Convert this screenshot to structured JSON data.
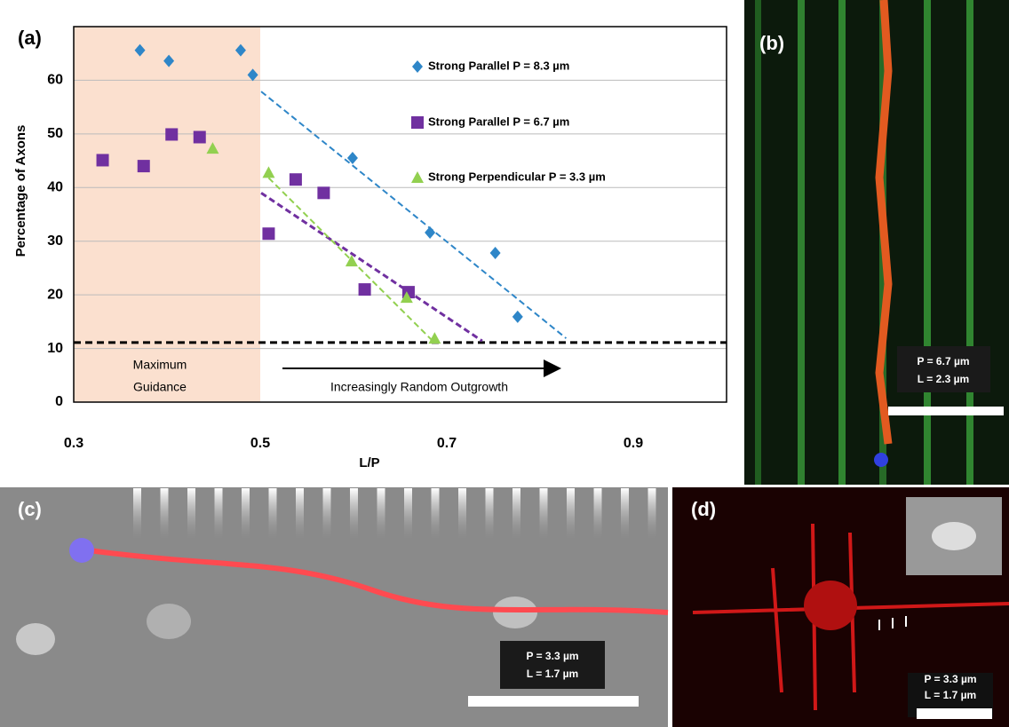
{
  "chart_data": {
    "type": "scatter",
    "panel_label": "(a)",
    "x_label": "L/P",
    "y_label": "Percentage of Axons",
    "xlim": [
      0.3,
      1.0
    ],
    "ylim": [
      0,
      70
    ],
    "xticks": [
      0.3,
      0.5,
      0.7,
      0.9
    ],
    "yticks": [
      0,
      10,
      20,
      30,
      40,
      50,
      60
    ],
    "grid": true,
    "shade_xlim": [
      0.3,
      0.5
    ],
    "shade_color": "#fbe0cf",
    "threshold": 11.1,
    "series": [
      {
        "name": "Strong Parallel P = 8.3 µm",
        "color": "#2e86c8",
        "marker": "diamond",
        "x": [
          0.371,
          0.402,
          0.479,
          0.492,
          0.599,
          0.682,
          0.752,
          0.776
        ],
        "values": [
          65.6,
          63.6,
          65.6,
          61,
          45.5,
          31.6,
          27.8,
          15.9
        ],
        "trend": {
          "x": [
            0.501,
            0.828
          ],
          "values": [
            57.9,
            11.9
          ]
        }
      },
      {
        "name": "Strong Parallel P = 6.7 µm",
        "color": "#7030a0",
        "marker": "square",
        "x": [
          0.331,
          0.375,
          0.405,
          0.435,
          0.509,
          0.538,
          0.568,
          0.612,
          0.659
        ],
        "values": [
          45.1,
          44,
          49.9,
          49.4,
          31.4,
          41.5,
          39,
          21,
          20.5
        ],
        "trend": {
          "x": [
            0.501,
            0.738
          ],
          "values": [
            39,
            11.4
          ]
        }
      },
      {
        "name": "Strong Perpendicular P = 3.3 µm",
        "color": "#92d050",
        "marker": "triangle",
        "x": [
          0.449,
          0.509,
          0.598,
          0.657,
          0.687
        ],
        "values": [
          47.3,
          42.8,
          26.3,
          19.5,
          11.9
        ],
        "trend": {
          "x": [
            0.509,
            0.685
          ],
          "values": [
            41.8,
            11.4
          ]
        }
      }
    ],
    "annotations": {
      "region": [
        "Maximum",
        "Guidance"
      ],
      "arrow": "Increasingly Random Outgrowth"
    }
  },
  "panels": [
    {
      "label": "(b)",
      "caption": [
        "P = 6.7 µm",
        "L = 2.3 µm"
      ]
    },
    {
      "label": "(c)",
      "caption": [
        "P = 3.3 µm",
        "L = 1.7 µm"
      ]
    },
    {
      "label": "(d)",
      "caption": [
        "P = 3.3 µm",
        "L = 1.7 µm"
      ]
    }
  ]
}
